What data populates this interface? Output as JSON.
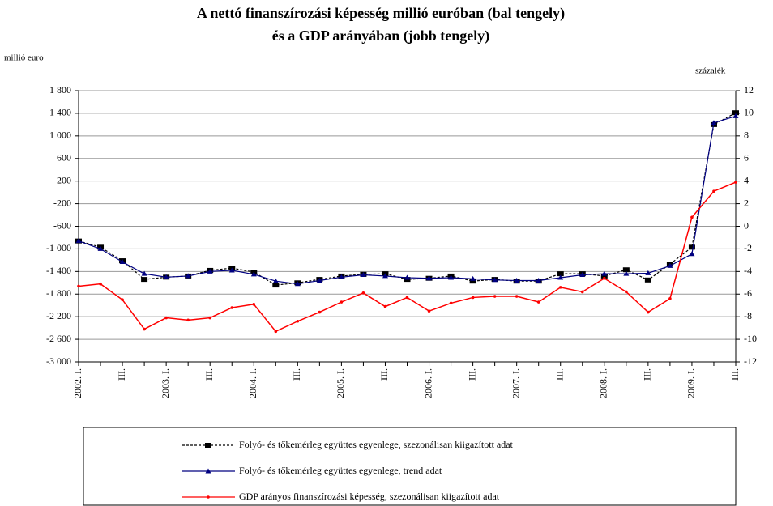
{
  "chart_data": {
    "type": "line",
    "title": [
      "A nettó finanszírozási képesség millió euróban (bal tengely)",
      "és a GDP arányában (jobb tengely)"
    ],
    "y_label": "millió euro",
    "y2_label": "százalék",
    "categories": [
      "2002. I.",
      null,
      "III.",
      null,
      "2003. I.",
      null,
      "III.",
      null,
      "2004. I.",
      null,
      "III.",
      null,
      "2005. I.",
      null,
      "III.",
      null,
      "2006. I.",
      null,
      "III.",
      null,
      "2007. I.",
      null,
      "III.",
      null,
      "2008. I.",
      null,
      "III.",
      null,
      "2009. I.",
      null,
      "III."
    ],
    "ylim": [
      -3000,
      1800
    ],
    "yticks": [
      {
        "value": -3000,
        "label": "-3 000"
      },
      {
        "value": -2600,
        "label": "-2 600"
      },
      {
        "value": -2200,
        "label": "-2 200"
      },
      {
        "value": -1800,
        "label": "-1 800"
      },
      {
        "value": -1400,
        "label": "-1 400"
      },
      {
        "value": -1000,
        "label": "-1 000"
      },
      -600,
      -200,
      200,
      600,
      {
        "value": 1000,
        "label": "1 000"
      },
      {
        "value": 1400,
        "label": "1 400"
      },
      {
        "value": 1800,
        "label": "1 800"
      }
    ],
    "y2lim": [
      -12,
      12
    ],
    "y2ticks": [
      -12,
      -10,
      -8,
      -6,
      -4,
      -2,
      0,
      2,
      4,
      6,
      8,
      10,
      12
    ],
    "grid": true,
    "legend": "bottom",
    "series": [
      {
        "name": "Folyó- és tőkemérleg együttes egyenlege, szezonálisan kiigazított adat",
        "color": "#000000",
        "line_style": "dashed",
        "marker": "square",
        "values": [
          -860,
          -970,
          -1210,
          -1540,
          -1500,
          -1480,
          -1380,
          -1340,
          -1410,
          -1640,
          -1600,
          -1540,
          -1480,
          -1450,
          -1440,
          -1540,
          -1520,
          -1480,
          -1570,
          -1540,
          -1570,
          -1570,
          -1440,
          -1440,
          -1480,
          -1370,
          -1550,
          -1270,
          -970,
          1200,
          1410
        ]
      },
      {
        "name": "Folyó- és tőkemérleg együttes egyenlege, trend adat",
        "color": "#000080",
        "line_style": "solid",
        "marker": "triangle",
        "values": [
          -860,
          -1000,
          -1230,
          -1440,
          -1500,
          -1480,
          -1400,
          -1380,
          -1450,
          -1570,
          -1620,
          -1560,
          -1500,
          -1460,
          -1480,
          -1510,
          -1520,
          -1510,
          -1530,
          -1550,
          -1560,
          -1560,
          -1510,
          -1460,
          -1440,
          -1440,
          -1430,
          -1300,
          -1090,
          1230,
          1350
        ]
      },
      {
        "name": "GDP arányos finanszírozási képesség, szezonálisan kiigazított adat",
        "color": "#ff0000",
        "line_style": "solid",
        "marker": "circle",
        "axis": "y2",
        "values": [
          -5.3,
          -5.1,
          -6.5,
          -9.1,
          -8.1,
          -8.3,
          -8.1,
          -7.2,
          -6.9,
          -9.3,
          -8.4,
          -7.6,
          -6.7,
          -5.9,
          -7.1,
          -6.3,
          -7.5,
          -6.8,
          -6.3,
          -6.2,
          -6.2,
          -6.7,
          -5.4,
          -5.8,
          -4.6,
          -5.8,
          -7.6,
          -6.4,
          0.8,
          3.1,
          3.9
        ]
      }
    ]
  }
}
